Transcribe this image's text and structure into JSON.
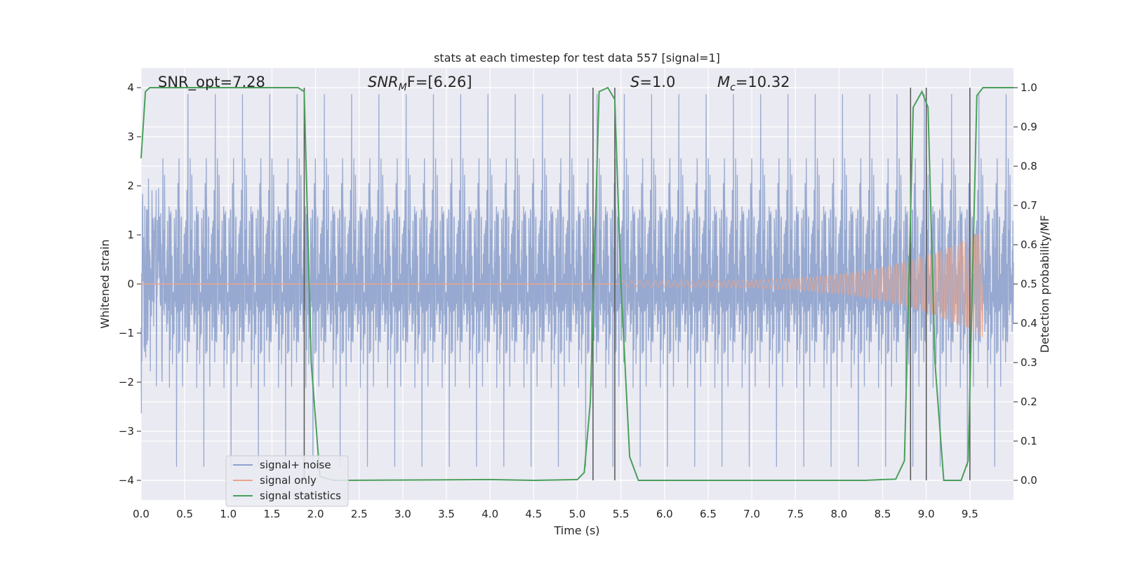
{
  "chart_data": {
    "type": "line",
    "title": "stats at each timestep for test data 557 [signal=1]",
    "xlabel": "Time (s)",
    "ylabel": "Whitened strain",
    "ylabel_right": "Detection probability/MF",
    "xlim": [
      0.0,
      10.0
    ],
    "ylim": [
      -4.4,
      4.4
    ],
    "ylim_right": [
      -0.05,
      1.05
    ],
    "x_ticks": [
      0.0,
      0.5,
      1.0,
      1.5,
      2.0,
      2.5,
      3.0,
      3.5,
      4.0,
      4.5,
      5.0,
      5.5,
      6.0,
      6.5,
      7.0,
      7.5,
      8.0,
      8.5,
      9.0,
      9.5
    ],
    "x_tick_labels": [
      "0.0",
      "0.5",
      "1.0",
      "1.5",
      "2.0",
      "2.5",
      "3.0",
      "3.5",
      "4.0",
      "4.5",
      "5.0",
      "5.5",
      "6.0",
      "6.5",
      "7.0",
      "7.5",
      "8.0",
      "8.5",
      "9.0",
      "9.5"
    ],
    "y_ticks": [
      -4,
      -3,
      -2,
      -1,
      0,
      1,
      2,
      3,
      4
    ],
    "y_tick_labels": [
      "−4",
      "−3",
      "−2",
      "−1",
      "0",
      "1",
      "2",
      "3",
      "4"
    ],
    "y_right_ticks": [
      0.0,
      0.1,
      0.2,
      0.3,
      0.4,
      0.5,
      0.6,
      0.7,
      0.8,
      0.9,
      1.0
    ],
    "y_right_tick_labels": [
      "0.0",
      "0.1",
      "0.2",
      "0.3",
      "0.4",
      "0.5",
      "0.6",
      "0.7",
      "0.8",
      "0.9",
      "1.0"
    ],
    "grid": true,
    "legend_placement": "lower-left",
    "annotations": {
      "snr_opt": "SNR_opt=7.28",
      "snr_mf_base": "SNR",
      "snr_mf_sub": "M",
      "snr_mf_rest": "F=[6.26]",
      "s_base": "S",
      "s_rest": "=1.0",
      "mc_base": "M",
      "mc_sub": "c",
      "mc_rest": "=10.32"
    },
    "series": [
      {
        "name": "signal+ noise",
        "color": "#8ea2cc",
        "axis": "left",
        "noise_band_typical": [
          -1.6,
          1.6
        ],
        "noise_extremes": [
          -4.0,
          4.0
        ]
      },
      {
        "name": "signal only",
        "color": "#e8a58d",
        "axis": "left",
        "chirp_start_x": 5.5,
        "chirp_end_x": 9.65,
        "chirp_peak_amplitude": 1.1
      },
      {
        "name": "signal statistics",
        "color": "#4aa05a",
        "axis": "right",
        "points": [
          [
            0.0,
            0.82
          ],
          [
            0.05,
            0.99
          ],
          [
            0.1,
            1.0
          ],
          [
            1.8,
            1.0
          ],
          [
            1.87,
            0.99
          ],
          [
            1.95,
            0.3
          ],
          [
            2.05,
            0.01
          ],
          [
            2.2,
            0.0
          ],
          [
            4.0,
            0.002
          ],
          [
            4.5,
            0.0
          ],
          [
            5.0,
            0.002
          ],
          [
            5.08,
            0.02
          ],
          [
            5.15,
            0.2
          ],
          [
            5.25,
            0.99
          ],
          [
            5.35,
            1.0
          ],
          [
            5.43,
            0.97
          ],
          [
            5.5,
            0.5
          ],
          [
            5.6,
            0.06
          ],
          [
            5.7,
            0.0
          ],
          [
            8.3,
            0.0
          ],
          [
            8.5,
            0.002
          ],
          [
            8.65,
            0.003
          ],
          [
            8.75,
            0.05
          ],
          [
            8.85,
            0.95
          ],
          [
            8.95,
            0.99
          ],
          [
            9.02,
            0.95
          ],
          [
            9.1,
            0.3
          ],
          [
            9.2,
            0.0
          ],
          [
            9.4,
            0.0
          ],
          [
            9.48,
            0.05
          ],
          [
            9.58,
            0.98
          ],
          [
            9.65,
            1.0
          ],
          [
            10.0,
            1.0
          ]
        ]
      }
    ],
    "vertical_markers": [
      1.87,
      5.18,
      5.43,
      8.82,
      9.0,
      9.5
    ]
  }
}
